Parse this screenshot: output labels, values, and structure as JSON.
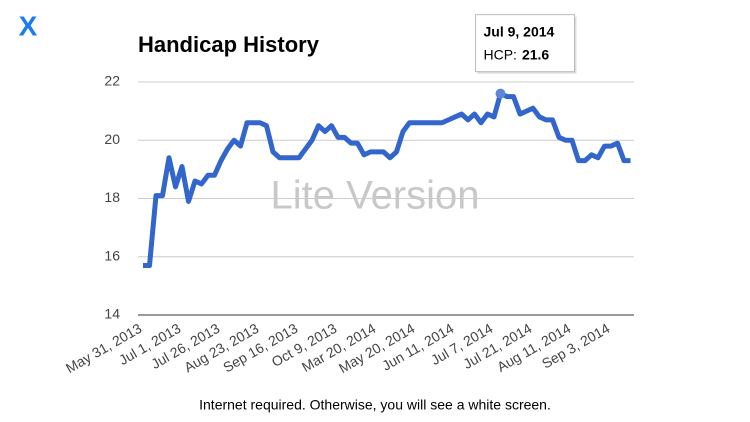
{
  "close_button": "X",
  "footer": "Internet required. Otherwise, you will see a white screen.",
  "chart_data": {
    "type": "line",
    "title": "Handicap History",
    "watermark": "Lite Version",
    "categories": [
      "May 31, 2013",
      null,
      null,
      null,
      null,
      null,
      "Jul 1, 2013",
      null,
      null,
      null,
      null,
      null,
      "Jul 26, 2013",
      null,
      null,
      null,
      null,
      null,
      "Aug 23, 2013",
      null,
      null,
      null,
      null,
      null,
      "Sep 16, 2013",
      null,
      null,
      null,
      null,
      null,
      "Oct 9, 2013",
      null,
      null,
      null,
      null,
      null,
      "Mar 20, 2014",
      null,
      null,
      null,
      null,
      null,
      "May 20, 2014",
      null,
      null,
      null,
      null,
      null,
      "Jun 11, 2014",
      null,
      null,
      null,
      null,
      null,
      "Jul 7, 2014",
      "Jul 9, 2014",
      null,
      null,
      null,
      null,
      "Jul 21, 2014",
      null,
      null,
      null,
      null,
      null,
      "Aug 11, 2014",
      null,
      null,
      null,
      null,
      null,
      "Sep 3, 2014",
      null,
      null,
      null
    ],
    "values": [
      15.7,
      15.7,
      18.1,
      18.1,
      19.4,
      18.4,
      19.1,
      17.9,
      18.6,
      18.5,
      18.8,
      18.8,
      19.3,
      19.7,
      20.0,
      19.8,
      20.6,
      20.6,
      20.6,
      20.5,
      19.6,
      19.4,
      19.4,
      19.4,
      19.4,
      19.7,
      20.0,
      20.5,
      20.3,
      20.5,
      20.1,
      20.1,
      19.9,
      19.9,
      19.5,
      19.6,
      19.6,
      19.6,
      19.4,
      19.6,
      20.3,
      20.6,
      20.6,
      20.6,
      20.6,
      20.6,
      20.6,
      20.7,
      20.8,
      20.9,
      20.7,
      20.9,
      20.6,
      20.9,
      20.8,
      21.6,
      21.5,
      21.5,
      20.9,
      21.0,
      21.1,
      20.8,
      20.7,
      20.7,
      20.1,
      20.0,
      20.0,
      19.3,
      19.3,
      19.5,
      19.4,
      19.8,
      19.8,
      19.9,
      19.3,
      19.3
    ],
    "color": "#3366cc",
    "ylim": [
      14,
      22
    ],
    "yticks": [
      14,
      16,
      18,
      20,
      22
    ],
    "grid": true,
    "tooltip": {
      "label": "HCP:",
      "value": 21.6
    }
  }
}
